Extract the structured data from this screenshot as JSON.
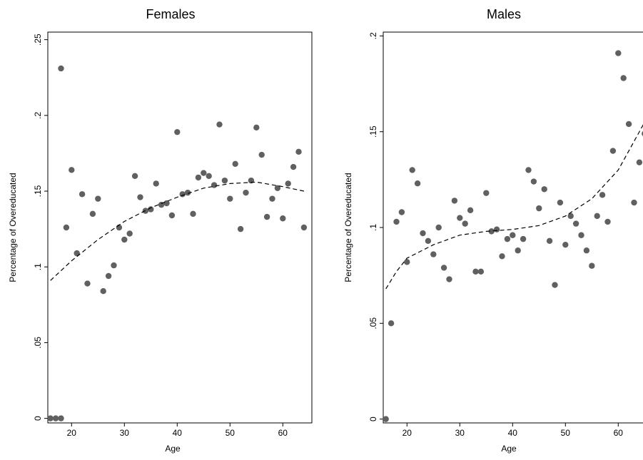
{
  "chart_data": [
    {
      "type": "scatter",
      "title": "Females",
      "xlabel": "Age",
      "ylabel": "Percentage of Overeducated",
      "xlim": [
        15.5,
        65.5
      ],
      "ylim": [
        -0.003,
        0.255
      ],
      "xticks": [
        20,
        30,
        40,
        50,
        60
      ],
      "xtick_labels": [
        "20",
        "30",
        "40",
        "50",
        "60"
      ],
      "yticks": [
        0,
        0.05,
        0.1,
        0.15,
        0.2,
        0.25
      ],
      "ytick_labels": [
        "0",
        ".05",
        ".1",
        ".15",
        ".2",
        ".25"
      ],
      "grid": false,
      "series": [
        {
          "kind": "points",
          "x": [
            16,
            17,
            18,
            18,
            19,
            20,
            21,
            22,
            23,
            24,
            25,
            26,
            27,
            28,
            29,
            30,
            31,
            32,
            33,
            34,
            35,
            36,
            37,
            38,
            39,
            40,
            41,
            42,
            43,
            44,
            45,
            46,
            47,
            48,
            49,
            50,
            51,
            52,
            53,
            54,
            55,
            56,
            57,
            58,
            59,
            60,
            61,
            62,
            63,
            64
          ],
          "y": [
            0.0,
            0.0,
            0.0,
            0.231,
            0.126,
            0.164,
            0.109,
            0.148,
            0.089,
            0.135,
            0.145,
            0.084,
            0.094,
            0.101,
            0.126,
            0.118,
            0.122,
            0.16,
            0.146,
            0.137,
            0.138,
            0.155,
            0.141,
            0.142,
            0.134,
            0.189,
            0.148,
            0.149,
            0.135,
            0.159,
            0.162,
            0.16,
            0.154,
            0.194,
            0.157,
            0.145,
            0.168,
            0.125,
            0.149,
            0.157,
            0.192,
            0.174,
            0.133,
            0.145,
            0.152,
            0.132,
            0.155,
            0.166,
            0.176,
            0.126
          ]
        },
        {
          "kind": "fit",
          "x": [
            16,
            20,
            25,
            30,
            35,
            40,
            45,
            50,
            55,
            60,
            64
          ],
          "y": [
            0.091,
            0.104,
            0.118,
            0.13,
            0.139,
            0.146,
            0.152,
            0.155,
            0.156,
            0.153,
            0.15
          ]
        }
      ]
    },
    {
      "type": "scatter",
      "title": "Males",
      "xlabel": "Age",
      "ylabel": "Percentage of Overeducated",
      "xlim": [
        15.5,
        65.5
      ],
      "ylim": [
        -0.002,
        0.202
      ],
      "xticks": [
        20,
        30,
        40,
        50,
        60
      ],
      "xtick_labels": [
        "20",
        "30",
        "40",
        "50",
        "60"
      ],
      "yticks": [
        0,
        0.05,
        0.1,
        0.15,
        0.2
      ],
      "ytick_labels": [
        "0",
        ".05",
        ".1",
        ".15",
        ".2"
      ],
      "grid": false,
      "series": [
        {
          "kind": "points",
          "x": [
            16,
            17,
            18,
            19,
            20,
            21,
            22,
            23,
            24,
            25,
            26,
            27,
            28,
            29,
            30,
            31,
            32,
            33,
            34,
            35,
            36,
            37,
            38,
            39,
            40,
            41,
            42,
            43,
            44,
            45,
            46,
            47,
            48,
            49,
            50,
            51,
            52,
            53,
            54,
            55,
            56,
            57,
            58,
            59,
            60,
            61,
            62,
            63,
            64,
            65
          ],
          "y": [
            0.0,
            0.05,
            0.103,
            0.108,
            0.082,
            0.13,
            0.123,
            0.097,
            0.093,
            0.086,
            0.1,
            0.079,
            0.073,
            0.114,
            0.105,
            0.102,
            0.109,
            0.077,
            0.077,
            0.118,
            0.098,
            0.099,
            0.085,
            0.094,
            0.096,
            0.088,
            0.094,
            0.13,
            0.124,
            0.11,
            0.12,
            0.093,
            0.07,
            0.113,
            0.091,
            0.106,
            0.102,
            0.096,
            0.088,
            0.08,
            0.106,
            0.117,
            0.103,
            0.14,
            0.191,
            0.178,
            0.154,
            0.113,
            0.134,
            0.149
          ]
        },
        {
          "kind": "fit",
          "x": [
            16,
            18,
            20,
            25,
            30,
            35,
            40,
            45,
            50,
            55,
            60,
            65
          ],
          "y": [
            0.068,
            0.077,
            0.084,
            0.091,
            0.096,
            0.098,
            0.099,
            0.101,
            0.106,
            0.115,
            0.13,
            0.155
          ]
        }
      ]
    }
  ]
}
